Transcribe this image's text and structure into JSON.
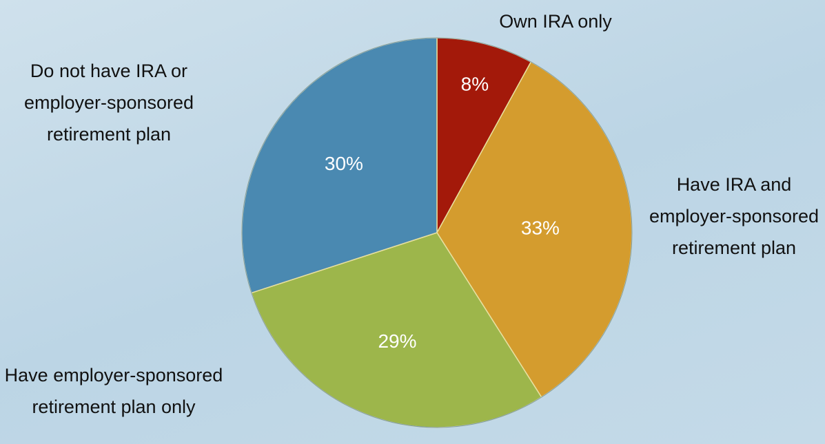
{
  "chart_data": {
    "type": "pie",
    "categories": [
      "Own IRA only",
      "Have IRA and employer-sponsored retirement plan",
      "Have employer-sponsored retirement plan only",
      "Do not have IRA or employer-sponsored retirement plan"
    ],
    "values": [
      8,
      33,
      29,
      30
    ],
    "value_labels": [
      "8%",
      "33%",
      "29%",
      "30%"
    ],
    "colors": [
      "#a3190a",
      "#d49c2e",
      "#9db64b",
      "#4a89b1"
    ]
  }
}
